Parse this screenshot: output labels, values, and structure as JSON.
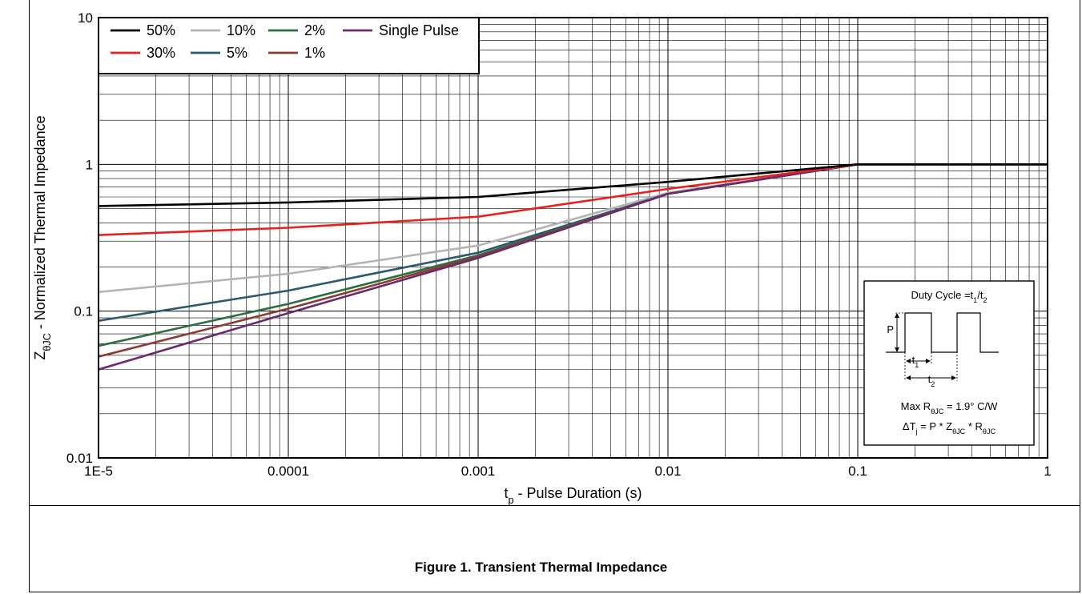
{
  "chart_data": {
    "type": "line",
    "title": "",
    "xlabel": {
      "main": "t",
      "sub": "p",
      "rest": " - Pulse Duration (s)"
    },
    "ylabel": {
      "main": "Z",
      "sub": "θJC",
      "rest": " - Normalized Thermal Impedance"
    },
    "x_scale": "log",
    "y_scale": "log",
    "xlim": [
      1e-05,
      1
    ],
    "ylim": [
      0.01,
      10
    ],
    "x_ticks": [
      1e-05,
      0.0001,
      0.001,
      0.01,
      0.1,
      1
    ],
    "x_tick_labels": [
      "1E-5",
      "0.0001",
      "0.001",
      "0.01",
      "0.1",
      "1"
    ],
    "y_ticks": [
      0.01,
      0.1,
      1,
      10
    ],
    "y_tick_labels": [
      "0.01",
      "0.1",
      "1",
      "10"
    ],
    "grid": true,
    "legend_position": "top-left",
    "series": [
      {
        "name": "50%",
        "color": "#000000",
        "x": [
          1e-05,
          0.0001,
          0.001,
          0.01,
          0.1,
          1
        ],
        "y": [
          0.52,
          0.55,
          0.6,
          0.76,
          1.0,
          1.0
        ]
      },
      {
        "name": "30%",
        "color": "#e8211e",
        "x": [
          1e-05,
          0.0001,
          0.001,
          0.01,
          0.1,
          1
        ],
        "y": [
          0.33,
          0.37,
          0.44,
          0.68,
          1.0,
          1.0
        ]
      },
      {
        "name": "10%",
        "color": "#b4b4b4",
        "x": [
          1e-05,
          0.0001,
          0.001,
          0.01,
          0.1,
          1
        ],
        "y": [
          0.135,
          0.18,
          0.28,
          0.64,
          1.0,
          1.0
        ]
      },
      {
        "name": "5%",
        "color": "#2a5a6e",
        "x": [
          1e-05,
          0.0001,
          0.001,
          0.01,
          0.1,
          1
        ],
        "y": [
          0.086,
          0.138,
          0.25,
          0.63,
          1.0,
          1.0
        ]
      },
      {
        "name": "2%",
        "color": "#2c6e3f",
        "x": [
          1e-05,
          0.0001,
          0.001,
          0.01,
          0.1,
          1
        ],
        "y": [
          0.058,
          0.112,
          0.24,
          0.63,
          1.0,
          1.0
        ]
      },
      {
        "name": "1%",
        "color": "#8c3a32",
        "x": [
          1e-05,
          0.0001,
          0.001,
          0.01,
          0.1,
          1
        ],
        "y": [
          0.049,
          0.104,
          0.235,
          0.63,
          1.0,
          1.0
        ]
      },
      {
        "name": "Single Pulse",
        "color": "#6b2a6e",
        "x": [
          1e-05,
          0.0001,
          0.001,
          0.01,
          0.1,
          1
        ],
        "y": [
          0.04,
          0.097,
          0.23,
          0.63,
          1.0,
          1.0
        ]
      }
    ],
    "legend_order": [
      "50%",
      "10%",
      "2%",
      "Single Pulse",
      "30%",
      "5%",
      "1%"
    ],
    "inset": {
      "title": {
        "main": "Duty Cycle =t",
        "sub1": "1",
        "slash": "/t",
        "sub2": "2"
      },
      "pulse_label": "P",
      "t1": {
        "main": "t",
        "sub": "1"
      },
      "t2": {
        "main": "t",
        "sub": "2"
      },
      "rjc_line": {
        "pre": "Max R",
        "sub": "θJC",
        "post": " = 1.9° C/W"
      },
      "dt_line": {
        "pre": "ΔT",
        "sub1": "j",
        "mid1": " = P * Z",
        "sub2": "θJC",
        "mid2": " * R",
        "sub3": "θJC"
      }
    }
  },
  "caption": "Figure 1. Transient Thermal Impedance"
}
